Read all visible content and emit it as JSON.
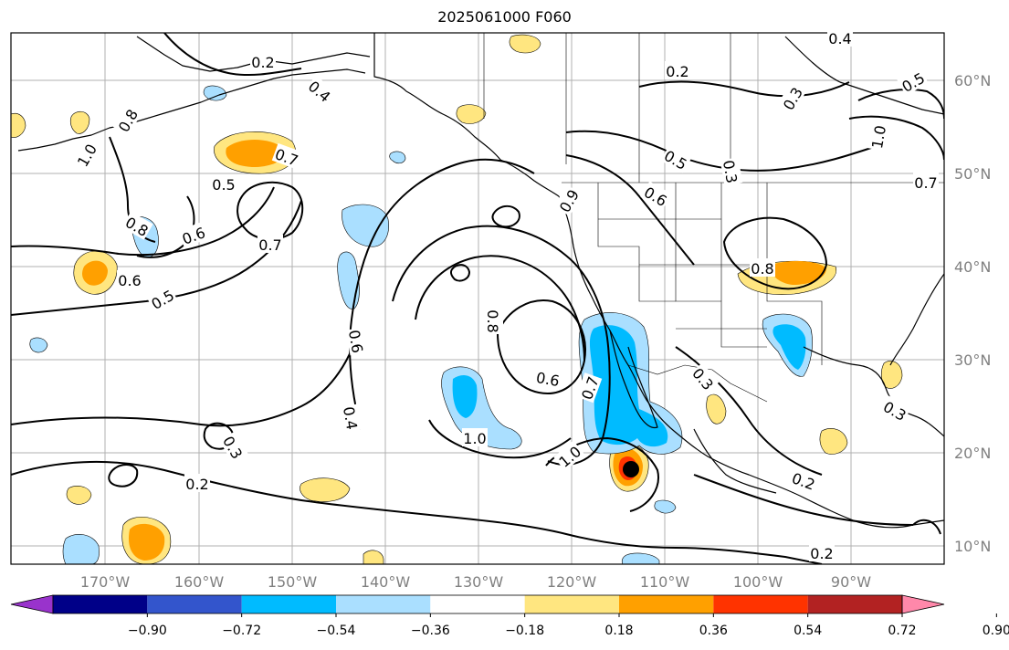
{
  "title": "2025061000 F060",
  "map": {
    "lon_ticks": [
      "170°W",
      "160°W",
      "150°W",
      "140°W",
      "130°W",
      "120°W",
      "110°W",
      "100°W",
      "90°W"
    ],
    "lat_ticks": [
      "10°N",
      "20°N",
      "30°N",
      "40°N",
      "50°N",
      "60°N"
    ],
    "contour_labels": [
      "0.2",
      "0.2",
      "0.2",
      "0.2",
      "0.2",
      "0.3",
      "0.3",
      "0.3",
      "0.3",
      "0.3",
      "0.4",
      "0.4",
      "0.4",
      "0.5",
      "0.5",
      "0.5",
      "0.5",
      "0.6",
      "0.6",
      "0.6",
      "0.6",
      "0.6",
      "0.7",
      "0.7",
      "0.7",
      "0.7",
      "0.8",
      "0.8",
      "0.8",
      "0.8",
      "0.9",
      "1.0",
      "1.0",
      "1.0",
      "1.0"
    ],
    "colors": {
      "land_outline": "#000000",
      "grid": "#b0b0b0",
      "contour": "#000000",
      "marker": "#000000"
    }
  },
  "colorbar": {
    "tick_labels": [
      "−0.90",
      "−0.72",
      "−0.54",
      "−0.36",
      "−0.18",
      "0.18",
      "0.36",
      "0.54",
      "0.72",
      "0.90"
    ],
    "colors": [
      "#9933cc",
      "#000088",
      "#3355cc",
      "#00bbff",
      "#aadfff",
      "#ffffff",
      "#ffe680",
      "#ffa000",
      "#ff3300",
      "#b22222",
      "#ff88aa"
    ]
  }
}
